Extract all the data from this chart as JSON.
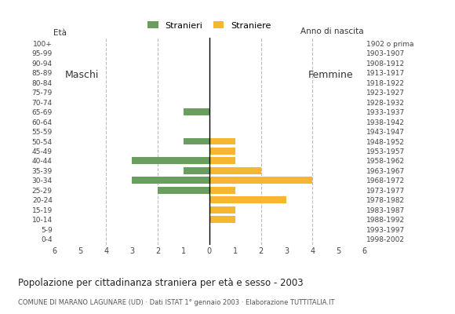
{
  "age_groups": [
    "0-4",
    "5-9",
    "10-14",
    "15-19",
    "20-24",
    "25-29",
    "30-34",
    "35-39",
    "40-44",
    "45-49",
    "50-54",
    "55-59",
    "60-64",
    "65-69",
    "70-74",
    "75-79",
    "80-84",
    "85-89",
    "90-94",
    "95-99",
    "100+"
  ],
  "birth_years": [
    "1998-2002",
    "1993-1997",
    "1988-1992",
    "1983-1987",
    "1978-1982",
    "1973-1977",
    "1968-1972",
    "1963-1967",
    "1958-1962",
    "1953-1957",
    "1948-1952",
    "1943-1947",
    "1938-1942",
    "1933-1937",
    "1928-1932",
    "1923-1927",
    "1918-1922",
    "1913-1917",
    "1908-1912",
    "1903-1907",
    "1902 o prima"
  ],
  "males": [
    0,
    0,
    0,
    0,
    0,
    2,
    3,
    1,
    3,
    0,
    1,
    0,
    0,
    1,
    0,
    0,
    0,
    0,
    0,
    0,
    0
  ],
  "females": [
    0,
    0,
    1,
    1,
    3,
    1,
    4,
    2,
    1,
    1,
    1,
    0,
    0,
    0,
    0,
    0,
    0,
    0,
    0,
    0,
    0
  ],
  "male_color": "#6a9e5e",
  "female_color": "#f5b731",
  "title": "Popolazione per cittadinanza straniera per età e sesso - 2003",
  "subtitle": "COMUNE DI MARANO LAGUNARE (UD) · Dati ISTAT 1° gennaio 2003 · Elaborazione TUTTITALIA.IT",
  "legend_male": "Stranieri",
  "legend_female": "Straniere",
  "label_left": "Maschi",
  "label_right": "Femmine",
  "label_age": "Età",
  "label_birth": "Anno di nascita",
  "xlim": 6,
  "background_color": "#ffffff",
  "grid_color": "#bbbbbb"
}
